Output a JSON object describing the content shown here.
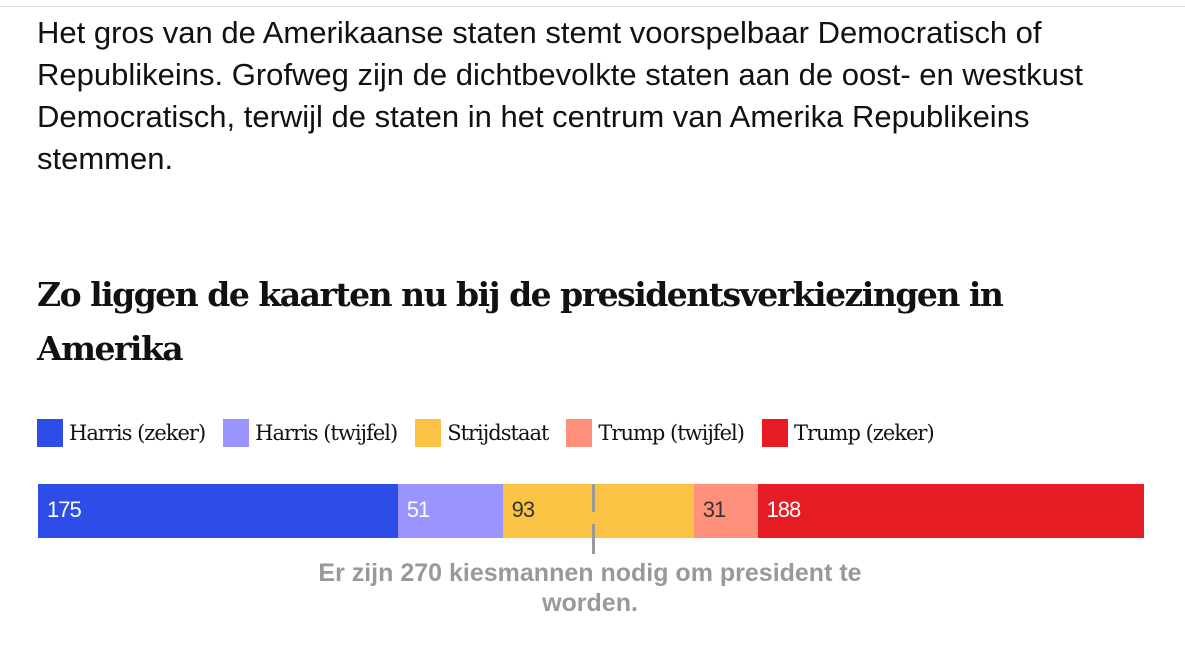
{
  "intro": "Het gros van de Amerikaanse staten stemt voorspelbaar Democratisch of Republikeins. Grofweg zijn de dichtbevolkte staten aan de oost- en westkust Democratisch, terwijl de staten in het centrum van Amerika Republikeins stemmen.",
  "chart_data": {
    "type": "stacked-bar",
    "title": "Zo liggen de kaarten nu bij de presidentsverkiezingen in Amerika",
    "categories": [
      "Harris (zeker)",
      "Harris (twijfel)",
      "Strijdstaat",
      "Trump (twijfel)",
      "Trump (zeker)"
    ],
    "values": [
      175,
      51,
      93,
      31,
      188
    ],
    "colors": [
      "#2e4de8",
      "#9b94ff",
      "#fbc343",
      "#ff917c",
      "#e51c23"
    ],
    "label_colors": [
      "#ffffff",
      "#ffffff",
      "#333333",
      "#333333",
      "#ffffff"
    ],
    "total": 538,
    "threshold": 270,
    "annotation": "Er zijn 270 kiesmannen nodig om president te worden."
  }
}
